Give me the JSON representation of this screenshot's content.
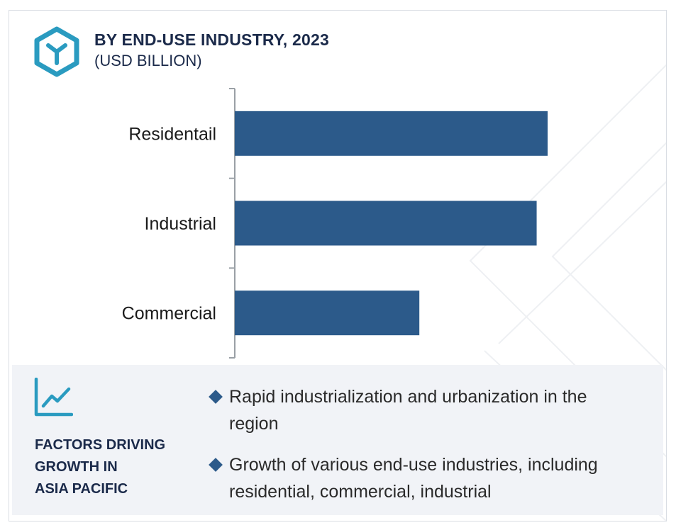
{
  "header": {
    "title": "BY END-USE INDUSTRY, 2023",
    "subtitle": "(USD BILLION)",
    "icon": "hexagon-y-logo-icon"
  },
  "chart_data": {
    "type": "bar",
    "orientation": "horizontal",
    "title": "BY END-USE INDUSTRY, 2023",
    "subtitle": "(USD BILLION)",
    "categories": [
      "Residentail",
      "Industrial",
      "Commercial"
    ],
    "values": [
      1.0,
      0.965,
      0.59
    ],
    "value_note_scale": "relative",
    "xlim": [
      0,
      1.0
    ],
    "grid": false,
    "legend": "none",
    "colors": {
      "bar": "#2c5a8a",
      "axis": "#9aa0a6"
    }
  },
  "factors": {
    "icon": "trend-chart-icon",
    "heading_lines": [
      "FACTORS DRIVING",
      "GROWTH IN",
      "ASIA PACIFIC"
    ],
    "items": [
      "Rapid industrialization and urbanization in the region",
      "Growth of various end-use industries, including residential, commercial, industrial"
    ]
  },
  "colors": {
    "accent_teal": "#2a9bc0",
    "navy": "#1b2a4a",
    "bar": "#2c5a8a",
    "panel_bg": "#f1f3f7"
  }
}
